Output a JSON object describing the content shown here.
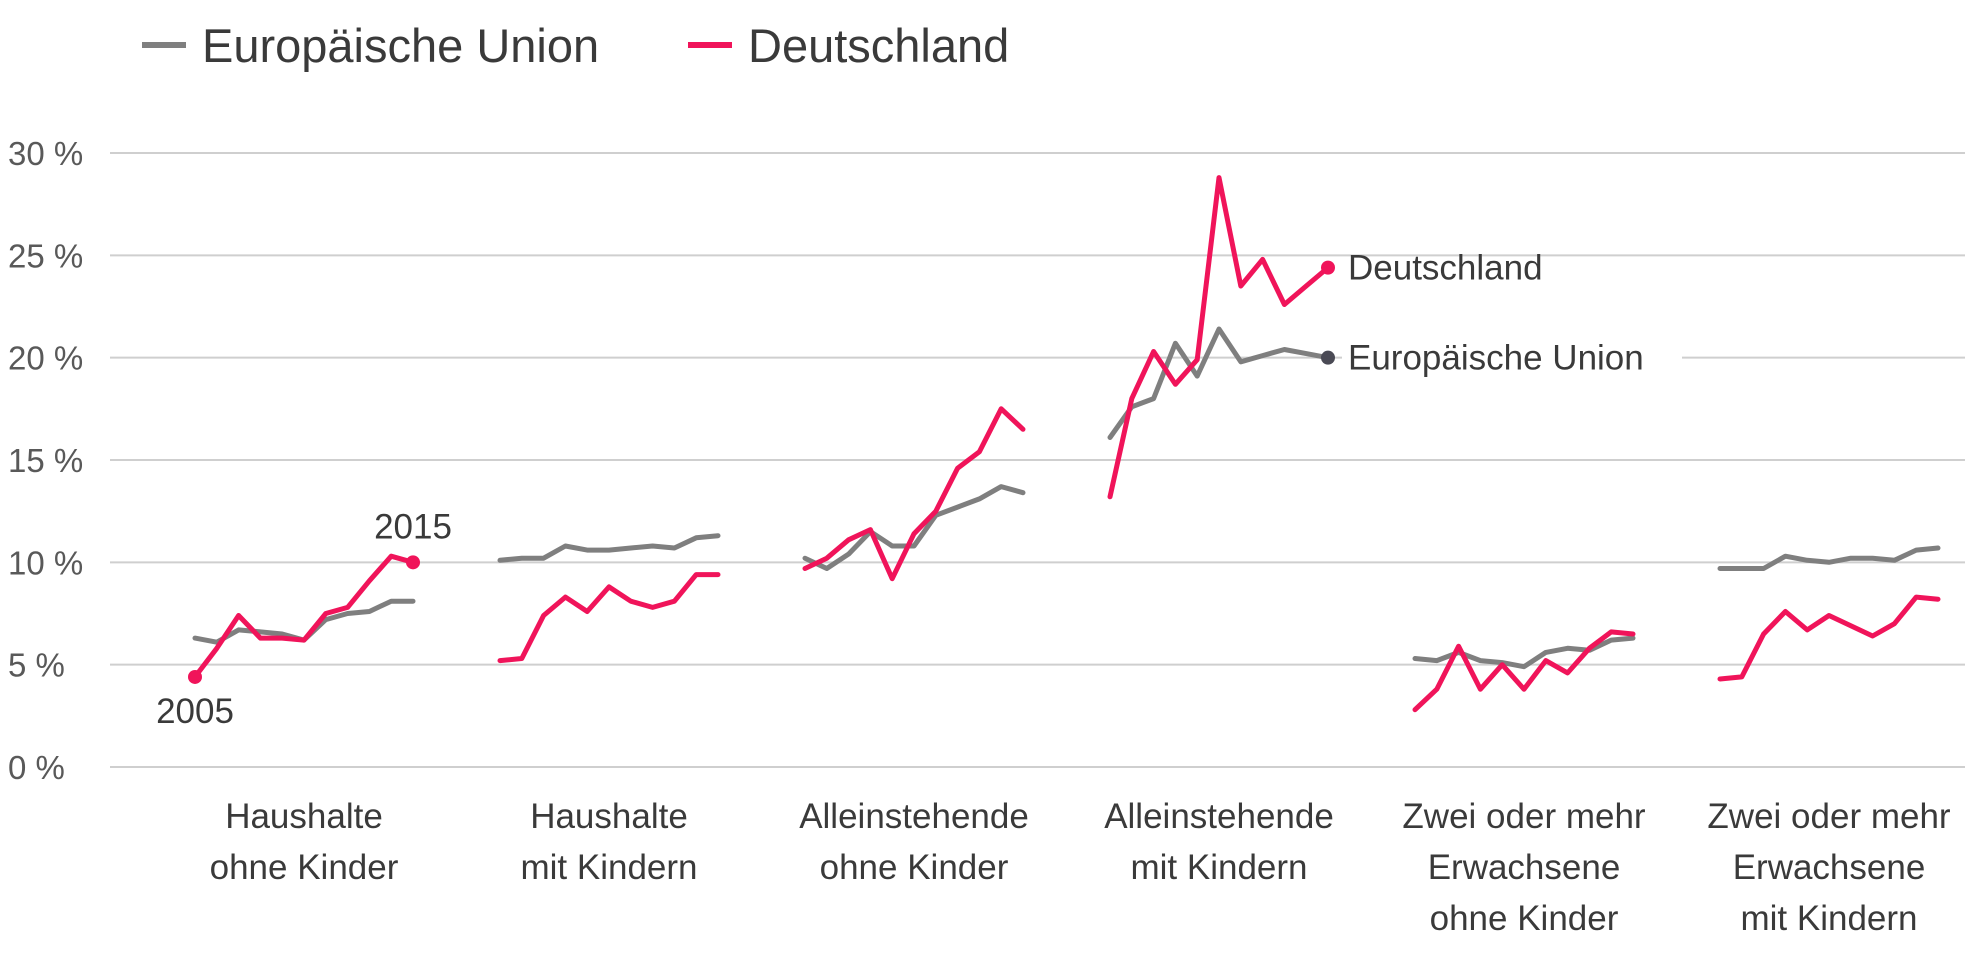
{
  "chart_data": {
    "type": "line",
    "title": "",
    "xlabel": "",
    "ylabel": "",
    "ylim": [
      0,
      30
    ],
    "yticks": [
      {
        "value": 0,
        "label": "0 %"
      },
      {
        "value": 5,
        "label": "5 %"
      },
      {
        "value": 10,
        "label": "10 %"
      },
      {
        "value": 15,
        "label": "15 %"
      },
      {
        "value": 20,
        "label": "20 %"
      },
      {
        "value": 25,
        "label": "25 %"
      },
      {
        "value": 30,
        "label": "30 %"
      }
    ],
    "grid": true,
    "legend_position": "top-left",
    "years": [
      2005,
      2006,
      2007,
      2008,
      2009,
      2010,
      2011,
      2012,
      2013,
      2014,
      2015
    ],
    "colors": {
      "eu": "#7f7f7f",
      "de": "#f0145a",
      "grid": "#cfcfcf",
      "end_marker_eu": "#4a4a55"
    },
    "series_names": {
      "eu": "Europäische Union",
      "de": "Deutschland"
    },
    "groups": [
      {
        "label_lines": [
          "Haushalte",
          "ohne Kinder"
        ],
        "eu": [
          6.3,
          6.1,
          6.7,
          6.6,
          6.5,
          6.2,
          7.2,
          7.5,
          7.6,
          8.1,
          8.1
        ],
        "de": [
          4.4,
          5.8,
          7.4,
          6.3,
          6.3,
          6.2,
          7.5,
          7.8,
          9.1,
          10.3,
          10.0
        ]
      },
      {
        "label_lines": [
          "Haushalte",
          "mit Kindern"
        ],
        "eu": [
          10.1,
          10.2,
          10.2,
          10.8,
          10.6,
          10.6,
          10.7,
          10.8,
          10.7,
          11.2,
          11.3
        ],
        "de": [
          5.2,
          5.3,
          7.4,
          8.3,
          7.6,
          8.8,
          8.1,
          7.8,
          8.1,
          9.4,
          9.4
        ]
      },
      {
        "label_lines": [
          "Alleinstehende",
          "ohne Kinder"
        ],
        "eu": [
          10.2,
          9.7,
          10.4,
          11.5,
          10.8,
          10.8,
          12.3,
          12.7,
          13.1,
          13.7,
          13.4
        ],
        "de": [
          9.7,
          10.2,
          11.1,
          11.6,
          9.2,
          11.4,
          12.5,
          14.6,
          15.4,
          17.5,
          16.5
        ]
      },
      {
        "label_lines": [
          "Alleinstehende",
          "mit Kindern"
        ],
        "eu": [
          16.1,
          17.6,
          18.0,
          20.7,
          19.1,
          21.4,
          19.8,
          20.1,
          20.4,
          20.2,
          20.0
        ],
        "de": [
          13.2,
          18.0,
          20.3,
          18.7,
          19.9,
          28.8,
          23.5,
          24.8,
          22.6,
          23.5,
          24.4
        ]
      },
      {
        "label_lines": [
          "Zwei oder mehr",
          "Erwachsene",
          "ohne Kinder"
        ],
        "eu": [
          5.3,
          5.2,
          5.6,
          5.2,
          5.1,
          4.9,
          5.6,
          5.8,
          5.7,
          6.2,
          6.3
        ],
        "de": [
          2.8,
          3.8,
          5.9,
          3.8,
          5.0,
          3.8,
          5.2,
          4.6,
          5.8,
          6.6,
          6.5
        ]
      },
      {
        "label_lines": [
          "Zwei oder mehr",
          "Erwachsene",
          "mit Kindern"
        ],
        "eu": [
          9.7,
          9.7,
          9.7,
          10.3,
          10.1,
          10.0,
          10.2,
          10.2,
          10.1,
          10.6,
          10.7
        ],
        "de": [
          4.3,
          4.4,
          6.5,
          7.6,
          6.7,
          7.4,
          6.9,
          6.4,
          7.0,
          8.3,
          8.2
        ]
      }
    ],
    "annotations": {
      "start_year_label": "2005",
      "end_year_label": "2015",
      "end_label_de": "Deutschland",
      "end_label_eu": "Europäische Union"
    }
  }
}
